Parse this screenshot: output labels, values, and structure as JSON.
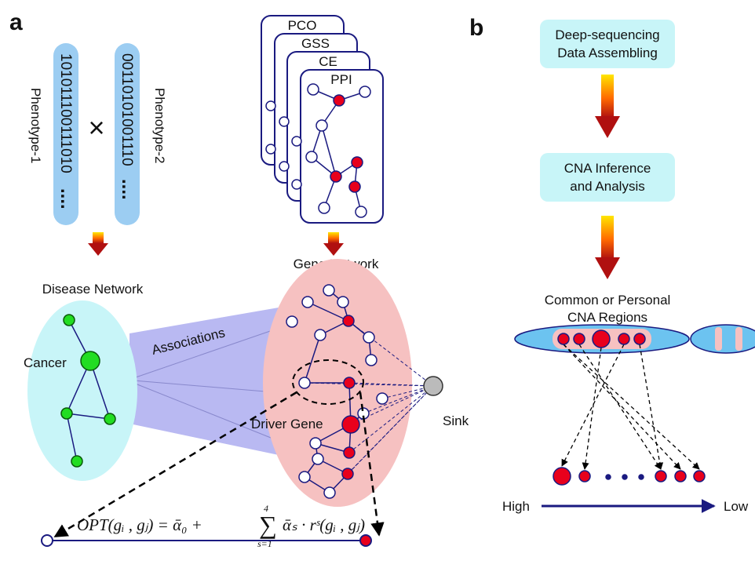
{
  "panel_a": {
    "label": "a",
    "phenotypes": [
      {
        "name": "Phenotype-1",
        "bits": "101011100111010",
        "dots": "...."
      },
      {
        "name": "Phenotype-2",
        "bits": "00110101001110",
        "dots": "...."
      }
    ],
    "cross": "×",
    "layers": [
      "PCO",
      "GSS",
      "CE",
      "PPI"
    ],
    "gene_network": "Gene Network",
    "disease_network": "Disease Network",
    "cancer": "Cancer",
    "associations": "Associations",
    "driver_gene": "Driver Gene",
    "sink": "Sink",
    "formula": {
      "lhs": "OPT(gᵢ , gⱼ) = ᾱ₀ + ",
      "sum": "∑",
      "upper": "4",
      "lower": "s=1",
      "rhs": "ᾱₛ · rˢ(gᵢ , gⱼ)"
    }
  },
  "panel_b": {
    "label": "b",
    "steps": [
      {
        "lines": [
          "Deep-sequencing",
          "Data Assembling"
        ]
      },
      {
        "lines": [
          "CNA Inference",
          "and Analysis"
        ]
      }
    ],
    "regions": [
      "Common or Personal",
      "CNA Regions"
    ],
    "high": "High",
    "low": "Low"
  }
}
